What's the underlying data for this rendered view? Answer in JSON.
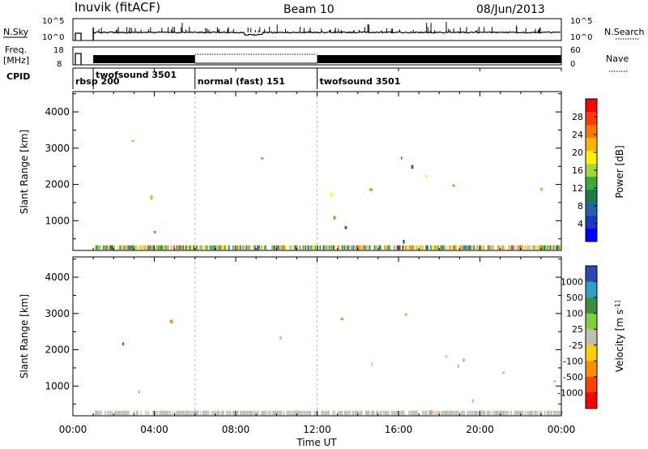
{
  "header": {
    "station": "Inuvik (fitACF)",
    "beam": "Beam 10",
    "date": "08/Jun/2013"
  },
  "strips": {
    "nsky_label": "N.Sky",
    "nsearch_label": "N.Search",
    "freq_label_line1": "Freq.",
    "freq_label_line2": "[MHz]",
    "nave_label": "Nave",
    "cpid_label": "CPID",
    "nsky_ticks": [
      "10^5",
      "10^0"
    ],
    "nsearch_ticks": [
      "10^5",
      "10^0"
    ],
    "freq_ticks": [
      "18",
      "8"
    ],
    "nave_ticks": [
      "60",
      "0"
    ]
  },
  "cpid_segments": [
    {
      "label": "rbsp 200",
      "start": 0.0,
      "end": 1.0
    },
    {
      "label": "twofsound 3501",
      "start": 1.0,
      "end": 6.0
    },
    {
      "label": "normal (fast) 151",
      "start": 6.0,
      "end": 12.0
    },
    {
      "label": "twofsound 3501",
      "start": 12.0,
      "end": 24.0
    }
  ],
  "chart_data": [
    {
      "type": "heatmap",
      "panel": "power",
      "ylabel": "Slant Range [km]",
      "yticks": [
        1000,
        2000,
        3000,
        4000
      ],
      "ylim": [
        180,
        4560
      ],
      "colorbar_label": "Power [dB]",
      "colorbar_ticks": [
        28,
        24,
        20,
        16,
        12,
        8,
        4
      ],
      "colorbar_colors": [
        "#ff0000",
        "#ff3b00",
        "#ff7800",
        "#ffb400",
        "#fff200",
        "#a2d93b",
        "#3ea93f",
        "#1d7a4a",
        "#2b5ea8",
        "#1e36c4",
        "#0000ff"
      ],
      "x_hours": [
        0,
        24
      ]
    },
    {
      "type": "heatmap",
      "panel": "velocity",
      "ylabel": "Slant Range [km]",
      "yticks": [
        1000,
        2000,
        3000,
        4000
      ],
      "ylim": [
        180,
        4560
      ],
      "colorbar_label": "Velocity [m s^-1]",
      "colorbar_ticks": [
        1000,
        500,
        100,
        25,
        -25,
        -100,
        -500,
        -1000
      ],
      "colorbar_colors": [
        "#2d49b0",
        "#2ea0c8",
        "#3d8f3d",
        "#7fcf3f",
        "#c0c0b0",
        "#ffd000",
        "#ff8c00",
        "#ff4000",
        "#ff0000"
      ],
      "xticks": [
        "00:00",
        "04:00",
        "08:00",
        "12:00",
        "16:00",
        "20:00",
        "00:00"
      ],
      "xlabel": "Time UT",
      "x_hours": [
        0,
        24
      ]
    }
  ]
}
